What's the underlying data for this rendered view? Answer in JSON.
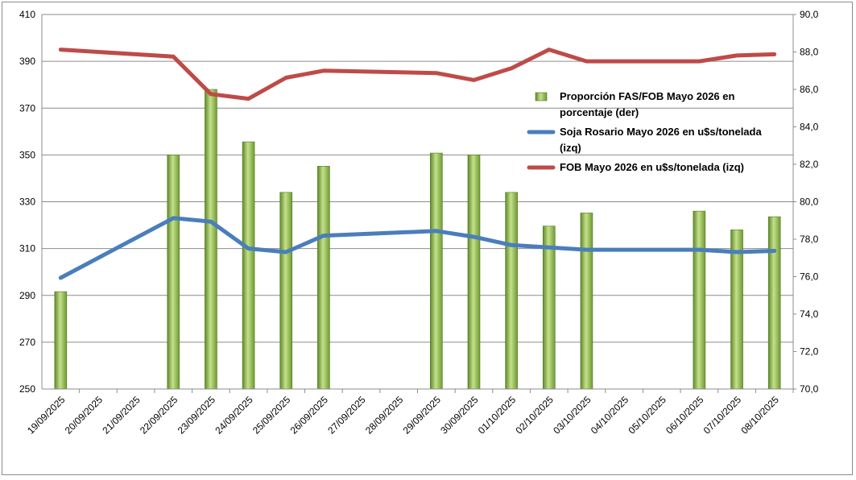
{
  "chart_data": {
    "type": "bar",
    "categories": [
      "19/09/2025",
      "20/09/2025",
      "21/09/2025",
      "22/09/2025",
      "23/09/2025",
      "24/09/2025",
      "25/09/2025",
      "26/09/2025",
      "27/09/2025",
      "28/09/2025",
      "29/09/2025",
      "30/09/2025",
      "01/10/2025",
      "02/10/2025",
      "03/10/2025",
      "04/10/2025",
      "05/10/2025",
      "06/10/2025",
      "07/10/2025",
      "08/10/2025"
    ],
    "y_left": {
      "ylim": [
        250,
        410
      ],
      "ticks": [
        250,
        270,
        290,
        310,
        330,
        350,
        370,
        390,
        410
      ]
    },
    "y_right": {
      "ylim": [
        70,
        90
      ],
      "ticks": [
        "70,0",
        "72,0",
        "74,0",
        "76,0",
        "78,0",
        "80,0",
        "82,0",
        "84,0",
        "86,0",
        "88,0",
        "90,0"
      ]
    },
    "grid": true,
    "legend_position": "right",
    "series": [
      {
        "name": "Proporción FAS/FOB Mayo 2026 en porcentaje (der)",
        "legend_lines": [
          "Proporción FAS/FOB Mayo 2026 en",
          "porcentaje (der)"
        ],
        "type": "bar",
        "axis": "right",
        "color": "#8cb84a",
        "values": [
          75.2,
          null,
          null,
          82.5,
          86.0,
          83.2,
          80.5,
          81.9,
          null,
          null,
          82.6,
          82.5,
          80.5,
          78.7,
          79.4,
          null,
          null,
          79.5,
          78.5,
          79.2
        ]
      },
      {
        "name": "Soja Rosario Mayo 2026 en u$s/tonelada (izq)",
        "legend_lines": [
          "Soja Rosario Mayo 2026 en u$s/tonelada",
          "(izq)"
        ],
        "type": "line",
        "axis": "left",
        "color": "#4a7ebb",
        "values": [
          297.5,
          null,
          null,
          323,
          321.5,
          310,
          308.5,
          315.5,
          null,
          null,
          317.5,
          315,
          311.5,
          310.5,
          309.5,
          null,
          null,
          309.5,
          308.5,
          309
        ]
      },
      {
        "name": "FOB Mayo 2026 en u$s/tonelada (izq)",
        "legend_lines": [
          "FOB Mayo 2026 en u$s/tonelada (izq)"
        ],
        "type": "line",
        "axis": "left",
        "color": "#be4b48",
        "values": [
          395,
          null,
          null,
          392,
          376,
          374,
          383,
          386,
          null,
          null,
          385,
          382,
          387,
          395,
          390,
          null,
          null,
          390,
          392.5,
          393
        ]
      }
    ]
  }
}
